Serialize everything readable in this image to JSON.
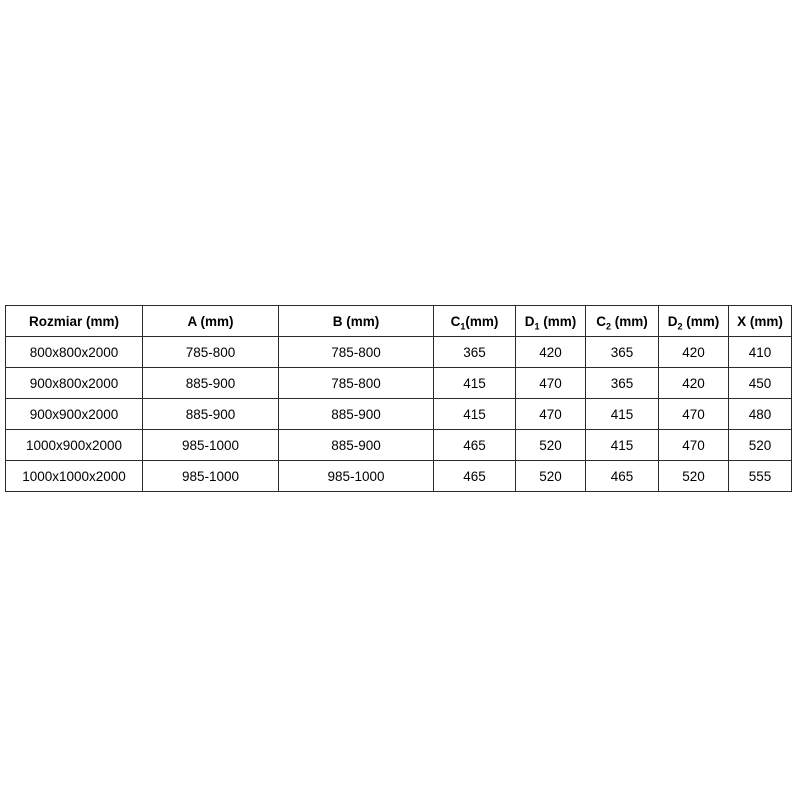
{
  "table": {
    "headers": [
      {
        "pre": "Rozmiar (mm)",
        "sub": "",
        "post": ""
      },
      {
        "pre": "A (mm)",
        "sub": "",
        "post": ""
      },
      {
        "pre": "B (mm)",
        "sub": "",
        "post": ""
      },
      {
        "pre": "C",
        "sub": "1",
        "post": "(mm)"
      },
      {
        "pre": "D",
        "sub": "1",
        "post": " (mm)"
      },
      {
        "pre": "C",
        "sub": "2",
        "post": " (mm)"
      },
      {
        "pre": "D",
        "sub": "2",
        "post": " (mm)"
      },
      {
        "pre": "X (mm)",
        "sub": "",
        "post": ""
      }
    ],
    "rows": [
      [
        "800x800x2000",
        "785-800",
        "785-800",
        "365",
        "420",
        "365",
        "420",
        "410"
      ],
      [
        "900x800x2000",
        "885-900",
        "785-800",
        "415",
        "470",
        "365",
        "420",
        "450"
      ],
      [
        "900x900x2000",
        "885-900",
        "885-900",
        "415",
        "470",
        "415",
        "470",
        "480"
      ],
      [
        "1000x900x2000",
        "985-1000",
        "885-900",
        "465",
        "520",
        "415",
        "470",
        "520"
      ],
      [
        "1000x1000x2000",
        "985-1000",
        "985-1000",
        "465",
        "520",
        "465",
        "520",
        "555"
      ]
    ]
  },
  "chart_data": {
    "type": "table",
    "title": "",
    "columns": [
      "Rozmiar (mm)",
      "A (mm)",
      "B (mm)",
      "C1(mm)",
      "D1 (mm)",
      "C2 (mm)",
      "D2 (mm)",
      "X (mm)"
    ],
    "rows": [
      [
        "800x800x2000",
        "785-800",
        "785-800",
        365,
        420,
        365,
        420,
        410
      ],
      [
        "900x800x2000",
        "885-900",
        "785-800",
        415,
        470,
        365,
        420,
        450
      ],
      [
        "900x900x2000",
        "885-900",
        "885-900",
        415,
        470,
        415,
        470,
        480
      ],
      [
        "1000x900x2000",
        "985-1000",
        "885-900",
        465,
        520,
        415,
        470,
        520
      ],
      [
        "1000x1000x2000",
        "985-1000",
        "985-1000",
        465,
        520,
        465,
        520,
        555
      ]
    ]
  },
  "colors": {
    "border": "#2b2b2b",
    "text": "#000000",
    "background": "#ffffff"
  }
}
